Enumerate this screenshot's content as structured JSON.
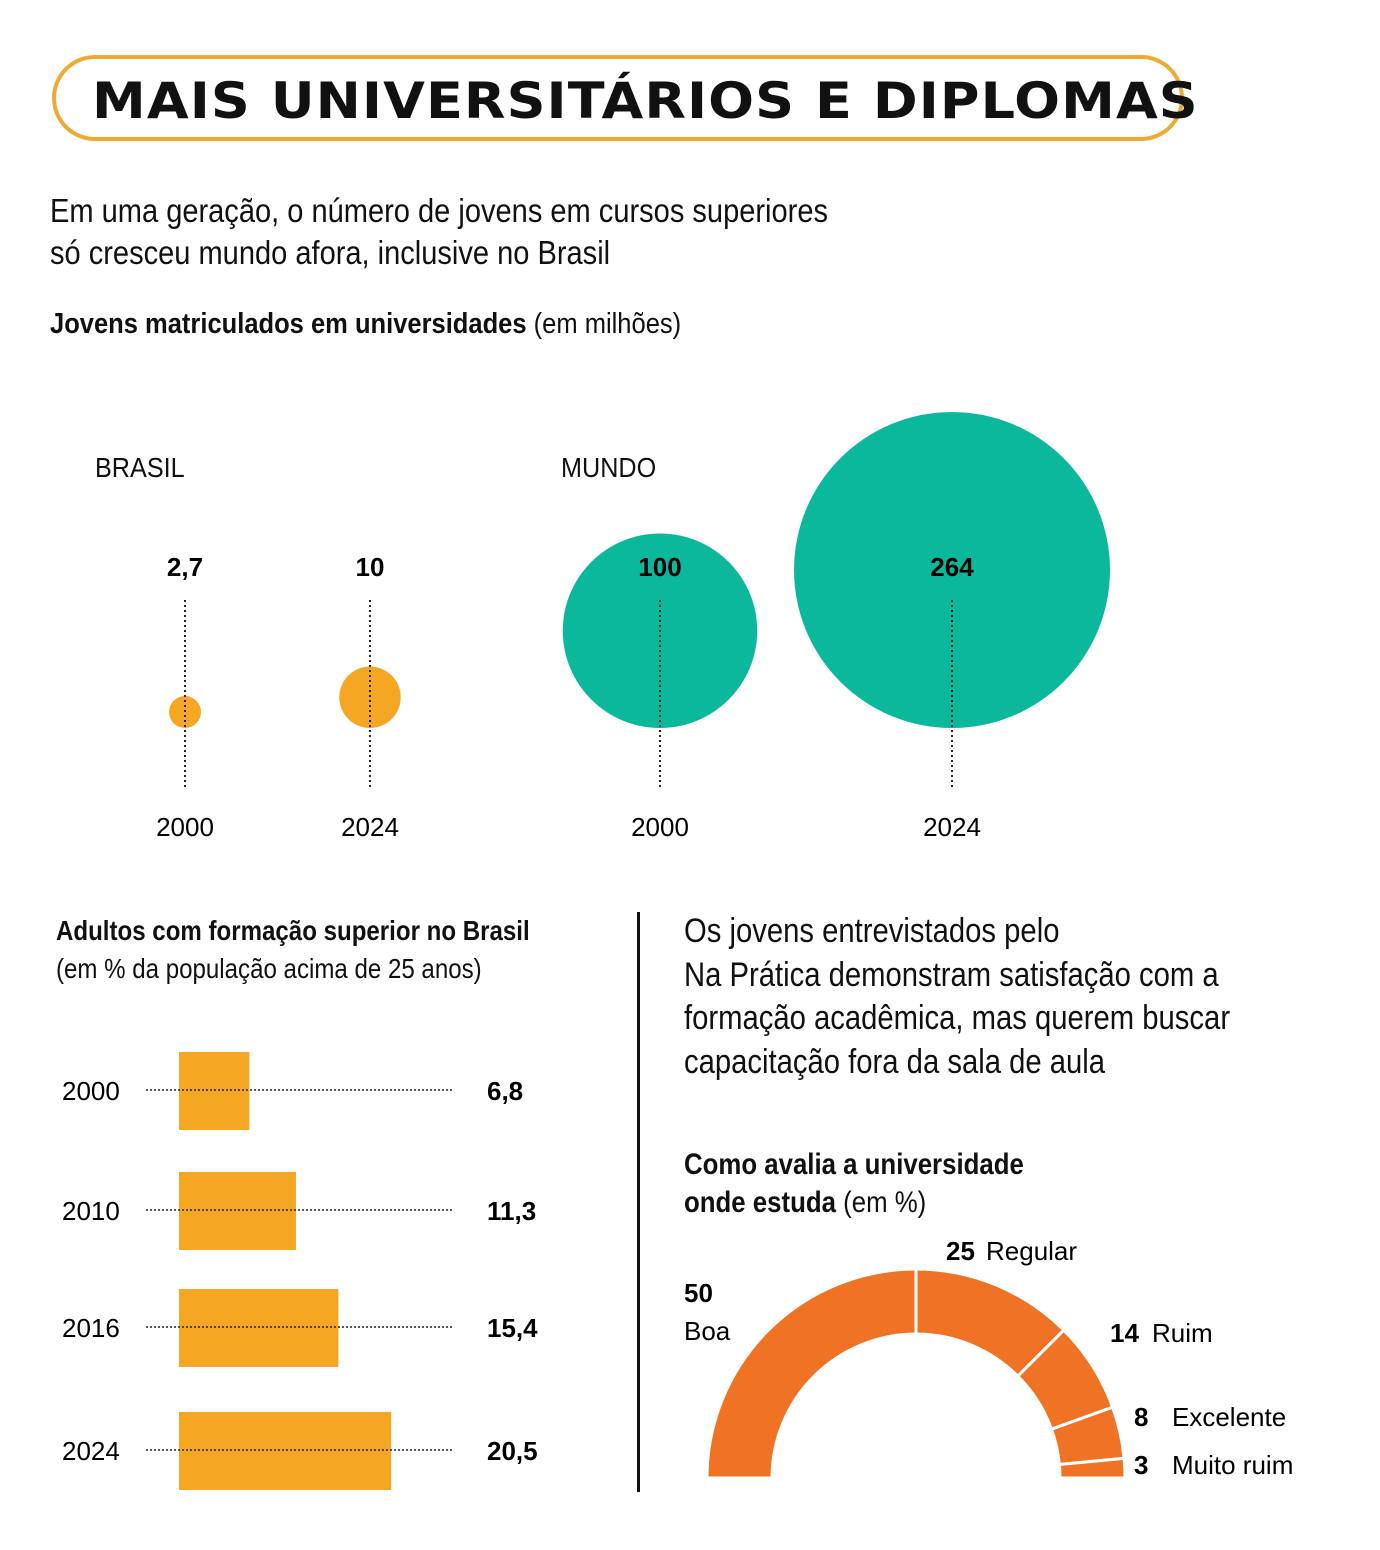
{
  "header": {
    "title": "MAIS UNIVERSITÁRIOS E DIPLOMAS",
    "intro_line1": "Em uma geração, o número de jovens em cursos superiores",
    "intro_line2": "só cresceu mundo afora, inclusive no Brasil"
  },
  "colors": {
    "border": "#eeaa33",
    "brazil": "#f5a623",
    "world": "#0bb89c",
    "bar": "#f5a623",
    "donut": "#f07224"
  },
  "chart_data": [
    {
      "type": "bubble",
      "title_bold": "Jovens matriculados em universidades",
      "title_normal": "(em milhões)",
      "groups": [
        {
          "name": "BRASIL",
          "points": [
            {
              "year": "2000",
              "value": 2.7,
              "label": "2,7"
            },
            {
              "year": "2024",
              "value": 10,
              "label": "10"
            }
          ]
        },
        {
          "name": "MUNDO",
          "points": [
            {
              "year": "2000",
              "value": 100,
              "label": "100"
            },
            {
              "year": "2024",
              "value": 264,
              "label": "264"
            }
          ]
        }
      ]
    },
    {
      "type": "bar",
      "title_bold": "Adultos com formação superior no Brasil",
      "subtitle": "(em % da população acima de 25 anos)",
      "categories": [
        "2000",
        "2010",
        "2016",
        "2024"
      ],
      "values": [
        6.8,
        11.3,
        15.4,
        20.5
      ],
      "labels": [
        "6,8",
        "11,3",
        "15,4",
        "20,5"
      ]
    },
    {
      "type": "pie",
      "variant": "semi-donut",
      "text_lines": [
        "Os jovens entrevistados pelo",
        "Na Prática demonstram satisfação com a",
        "formação acadêmica, mas querem buscar",
        "capacitação fora da sala de aula"
      ],
      "title_bold_line1": "Como avalia a universidade",
      "title_bold_line2": "onde estuda",
      "title_normal": "(em %)",
      "slices": [
        {
          "label": "Boa",
          "value": 50,
          "value_label": "50"
        },
        {
          "label": "Regular",
          "value": 25,
          "value_label": "25"
        },
        {
          "label": "Ruim",
          "value": 14,
          "value_label": "14"
        },
        {
          "label": "Excelente",
          "value": 8,
          "value_label": "8"
        },
        {
          "label": "Muito ruim",
          "value": 3,
          "value_label": "3"
        }
      ]
    }
  ]
}
